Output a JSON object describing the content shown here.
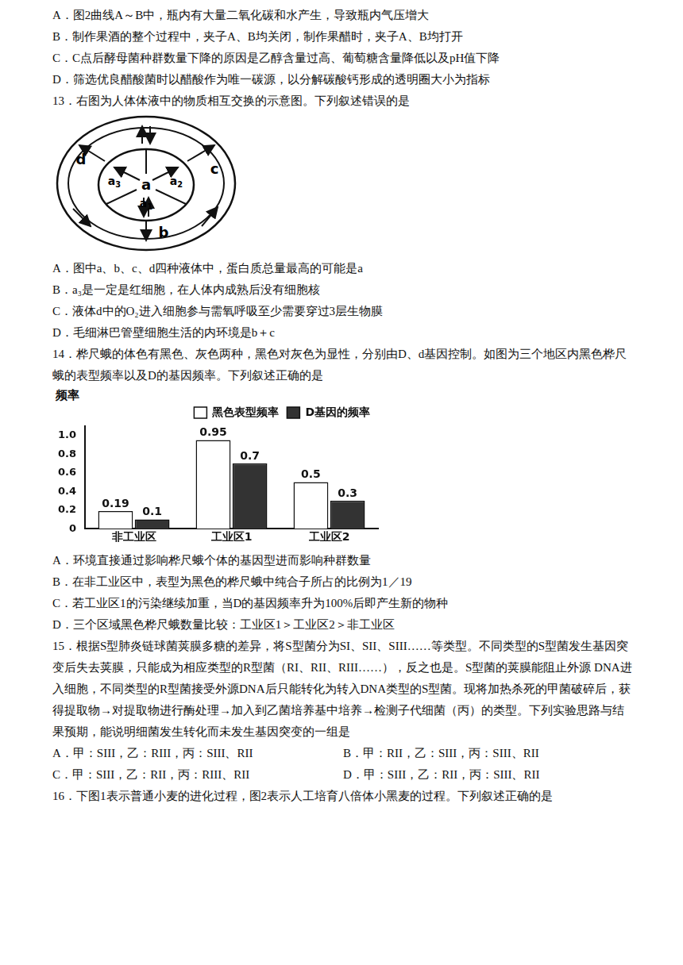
{
  "document": {
    "q12_options": [
      "A．图2曲线A～B中，瓶内有大量二氧化碳和水产生，导致瓶内气压增大",
      "B．制作果酒的整个过程中，夹子A、B均关闭，制作果醋时，夹子A、B均打开",
      "C．C点后酵母菌种群数量下降的原因是乙醇含量过高、葡萄糖含量降低以及pH值下降",
      "D．筛选优良醋酸菌时以醋酸作为唯一碳源，以分解碳酸钙形成的透明圈大小为指标"
    ],
    "q13": {
      "stem": "13．右图为人体体液中的物质相互交换的示意图。下列叙述错误的是",
      "diagram_labels": {
        "a": "a",
        "a1": "a1",
        "a2": "a2",
        "a3": "a3",
        "b": "b",
        "c": "c",
        "d": "d"
      },
      "options": [
        "A．图中a、b、c、d四种液体中，蛋白质总量最高的可能是a",
        "B．a₃是一定是红细胞，在人体内成熟后没有细胞核",
        "C．液体d中的O₂进入细胞参与需氧呼吸至少需要穿过3层生物膜",
        "D．毛细淋巴管壁细胞生活的内环境是b＋c"
      ]
    },
    "q14": {
      "stem": "14．桦尺蛾的体色有黑色、灰色两种，黑色对灰色为显性，分别由D、d基因控制。如图为三个地区内黑色桦尺蛾的表型频率以及D的基因频率。下列叙述正确的是",
      "options": [
        "A．环境直接通过影响桦尺蛾个体的基因型进而影响种群数量",
        "B．在非工业区中，表型为黑色的桦尺蛾中纯合子所占的比例为1／19",
        "C．若工业区1的污染继续加重，当D的基因频率升为100%后即产生新的物种",
        "D．三个区域黑色桦尺蛾数量比较：工业区1＞工业区2＞非工业区"
      ]
    },
    "q15": {
      "stem": "15．根据S型肺炎链球菌荚膜多糖的差异，将S型菌分为SI、SII、SIII……等类型。不同类型的S型菌发生基因突变后失去荚膜，只能成为相应类型的R型菌（RI、RII、RIII……），反之也是。S型菌的荚膜能阻止外源 DNA进入细胞，不同类型的R型菌接受外源DNA后只能转化为转入DNA类型的S型菌。现将加热杀死的甲菌破碎后，获得提取物→对提取物进行酶处理→加入到乙菌培养基中培养→检测子代细菌（丙）的类型。下列实验思路与结果预期，能说明细菌发生转化而未发生基因突变的一组是",
      "options": [
        "A．甲：SIII，乙：RIII，丙：SIII、RII",
        "B．甲：RII，乙：SIII，丙：SIII、RII",
        "C．甲：SIII，乙：RII，丙：RIII、RII",
        "D．甲：SIII，乙：RII，丙：SIII、RII"
      ]
    },
    "q16": {
      "stem": "16．下图1表示普通小麦的进化过程，图2表示人工培育八倍体小黑麦的过程。下列叙述正确的是"
    }
  },
  "chart_data": {
    "type": "bar",
    "ylabel": "频率",
    "categories": [
      "非工业区",
      "工业区1",
      "工业区2"
    ],
    "series": [
      {
        "name": "黑色表型频率",
        "color": "#ffffff",
        "values": [
          0.19,
          0.95,
          0.5
        ]
      },
      {
        "name": "D基因的频率",
        "color": "#333333",
        "values": [
          0.1,
          0.7,
          0.3
        ]
      }
    ],
    "ylim": [
      0,
      1.1
    ],
    "yticks": [
      0,
      0.2,
      0.4,
      0.6,
      0.8,
      {
        "value": 1,
        "label": "1.0"
      }
    ],
    "grid": false,
    "legend": "upper right",
    "data_labels": true
  }
}
